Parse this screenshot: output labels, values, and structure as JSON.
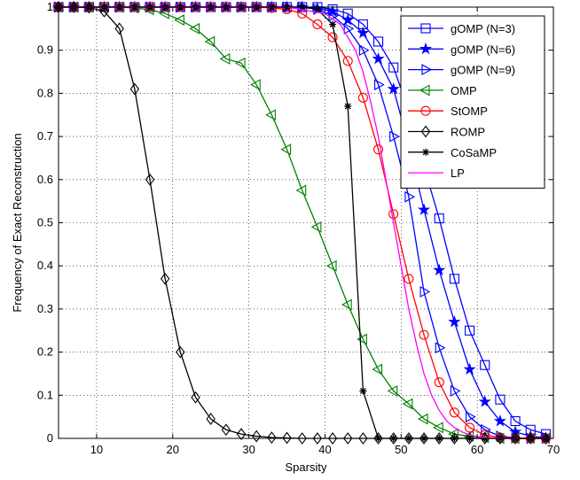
{
  "chart_data": {
    "type": "line",
    "xlabel": "Sparsity",
    "ylabel": "Frequency of Exact Reconstruction",
    "xlim": [
      5,
      70
    ],
    "ylim": [
      0,
      1
    ],
    "xticks": [
      10,
      20,
      30,
      40,
      50,
      60,
      70
    ],
    "yticks": [
      0,
      0.1,
      0.2,
      0.3,
      0.4,
      0.5,
      0.6,
      0.7,
      0.8,
      0.9,
      1
    ],
    "xtick_labels": [
      "10",
      "20",
      "30",
      "40",
      "50",
      "60",
      "70"
    ],
    "ytick_labels": [
      "0",
      "0.1",
      "0.2",
      "0.3",
      "0.4",
      "0.5",
      "0.6",
      "0.7",
      "0.8",
      "0.9",
      "1"
    ],
    "grid": "dotted",
    "legend_position": "top-right",
    "series": [
      {
        "name": "gOMP (N=3)",
        "color": "#0000ff",
        "marker": "square",
        "x": [
          5,
          7,
          9,
          11,
          13,
          15,
          17,
          19,
          21,
          23,
          25,
          27,
          29,
          31,
          33,
          35,
          37,
          39,
          41,
          43,
          45,
          47,
          49,
          51,
          53,
          55,
          57,
          59,
          61,
          63,
          65,
          67,
          69
        ],
        "y": [
          1,
          1,
          1,
          1,
          1,
          1,
          1,
          1,
          1,
          1,
          1,
          1,
          1,
          1,
          1,
          1,
          1,
          1,
          0.995,
          0.985,
          0.96,
          0.92,
          0.86,
          0.76,
          0.63,
          0.51,
          0.37,
          0.25,
          0.17,
          0.09,
          0.04,
          0.02,
          0.01
        ]
      },
      {
        "name": "gOMP (N=6)",
        "color": "#0000ff",
        "marker": "star",
        "x": [
          5,
          7,
          9,
          11,
          13,
          15,
          17,
          19,
          21,
          23,
          25,
          27,
          29,
          31,
          33,
          35,
          37,
          39,
          41,
          43,
          45,
          47,
          49,
          51,
          53,
          55,
          57,
          59,
          61,
          63,
          65,
          67,
          69
        ],
        "y": [
          1,
          1,
          1,
          1,
          1,
          1,
          1,
          1,
          1,
          1,
          1,
          1,
          1,
          1,
          1,
          1,
          1,
          0.997,
          0.99,
          0.97,
          0.94,
          0.88,
          0.81,
          0.68,
          0.53,
          0.39,
          0.27,
          0.16,
          0.085,
          0.04,
          0.015,
          0.005,
          0.001
        ]
      },
      {
        "name": "gOMP (N=9)",
        "color": "#0000ff",
        "marker": "triangle-right",
        "x": [
          5,
          7,
          9,
          11,
          13,
          15,
          17,
          19,
          21,
          23,
          25,
          27,
          29,
          31,
          33,
          35,
          37,
          39,
          41,
          43,
          45,
          47,
          49,
          51,
          53,
          55,
          57,
          59,
          61,
          63,
          65,
          67,
          69
        ],
        "y": [
          1,
          1,
          1,
          1,
          1,
          1,
          1,
          1,
          1,
          1,
          1,
          1,
          1,
          1,
          1,
          1,
          1,
          0.995,
          0.98,
          0.95,
          0.9,
          0.82,
          0.7,
          0.56,
          0.34,
          0.21,
          0.11,
          0.05,
          0.02,
          0.005,
          0.001,
          0,
          0
        ]
      },
      {
        "name": "OMP",
        "color": "#008000",
        "marker": "triangle-left",
        "x": [
          5,
          7,
          9,
          11,
          13,
          15,
          17,
          19,
          21,
          23,
          25,
          27,
          29,
          31,
          33,
          35,
          37,
          39,
          41,
          43,
          45,
          47,
          49,
          51,
          53,
          55,
          57,
          59,
          61,
          63,
          65,
          67,
          69
        ],
        "y": [
          1,
          1,
          1,
          1,
          1,
          0.998,
          0.994,
          0.985,
          0.97,
          0.95,
          0.92,
          0.88,
          0.87,
          0.82,
          0.75,
          0.67,
          0.575,
          0.49,
          0.4,
          0.31,
          0.23,
          0.16,
          0.11,
          0.08,
          0.045,
          0.025,
          0.01,
          0.005,
          0.002,
          0,
          0,
          0,
          0
        ]
      },
      {
        "name": "StOMP",
        "color": "#ff0000",
        "marker": "circle",
        "x": [
          5,
          7,
          9,
          11,
          13,
          15,
          17,
          19,
          21,
          23,
          25,
          27,
          29,
          31,
          33,
          35,
          37,
          39,
          41,
          43,
          45,
          47,
          49,
          51,
          53,
          55,
          57,
          59,
          61,
          63,
          65,
          67,
          69
        ],
        "y": [
          1,
          1,
          1,
          1,
          1,
          1,
          1,
          1,
          1,
          1,
          1,
          1,
          1,
          1,
          0.998,
          0.995,
          0.985,
          0.96,
          0.93,
          0.875,
          0.79,
          0.67,
          0.52,
          0.37,
          0.24,
          0.13,
          0.06,
          0.025,
          0.008,
          0.002,
          0,
          0,
          0
        ]
      },
      {
        "name": "ROMP",
        "color": "#000000",
        "marker": "diamond",
        "x": [
          5,
          7,
          9,
          11,
          13,
          15,
          17,
          19,
          21,
          23,
          25,
          27,
          29,
          31,
          33,
          35,
          37,
          39,
          41,
          43,
          45,
          47,
          49,
          51,
          53,
          55,
          57,
          59,
          61,
          63,
          65,
          67,
          69
        ],
        "y": [
          1,
          1,
          0.999,
          0.99,
          0.95,
          0.81,
          0.6,
          0.37,
          0.2,
          0.095,
          0.045,
          0.02,
          0.01,
          0.005,
          0.002,
          0.001,
          0,
          0,
          0,
          0,
          0,
          0,
          0,
          0,
          0,
          0,
          0,
          0,
          0,
          0,
          0,
          0,
          0
        ]
      },
      {
        "name": "CoSaMP",
        "color": "#000000",
        "marker": "asterisk",
        "x": [
          5,
          7,
          9,
          11,
          13,
          15,
          17,
          19,
          21,
          23,
          25,
          27,
          29,
          31,
          33,
          35,
          37,
          39,
          41,
          43,
          45,
          47,
          49,
          51,
          53,
          55,
          57,
          59,
          61,
          63,
          65,
          67,
          69
        ],
        "y": [
          1,
          1,
          1,
          1,
          1,
          1,
          1,
          1,
          1,
          1,
          1,
          1,
          1,
          1,
          1,
          1,
          1,
          0.995,
          0.96,
          0.77,
          0.11,
          0,
          0,
          0,
          0,
          0,
          0,
          0,
          0,
          0,
          0,
          0,
          0
        ]
      },
      {
        "name": "LP",
        "color": "#ff00ff",
        "marker": "none",
        "x": [
          5,
          10,
          20,
          30,
          35,
          40,
          42,
          44,
          45,
          46,
          47,
          48,
          49,
          50,
          51,
          52,
          53,
          54,
          55,
          56,
          57,
          58,
          59,
          60,
          62,
          64,
          66,
          70
        ],
        "y": [
          1,
          1,
          1,
          1,
          1,
          0.985,
          0.96,
          0.9,
          0.85,
          0.78,
          0.7,
          0.6,
          0.5,
          0.4,
          0.3,
          0.22,
          0.15,
          0.1,
          0.065,
          0.04,
          0.025,
          0.015,
          0.008,
          0.004,
          0.001,
          0,
          0,
          0
        ]
      }
    ]
  }
}
